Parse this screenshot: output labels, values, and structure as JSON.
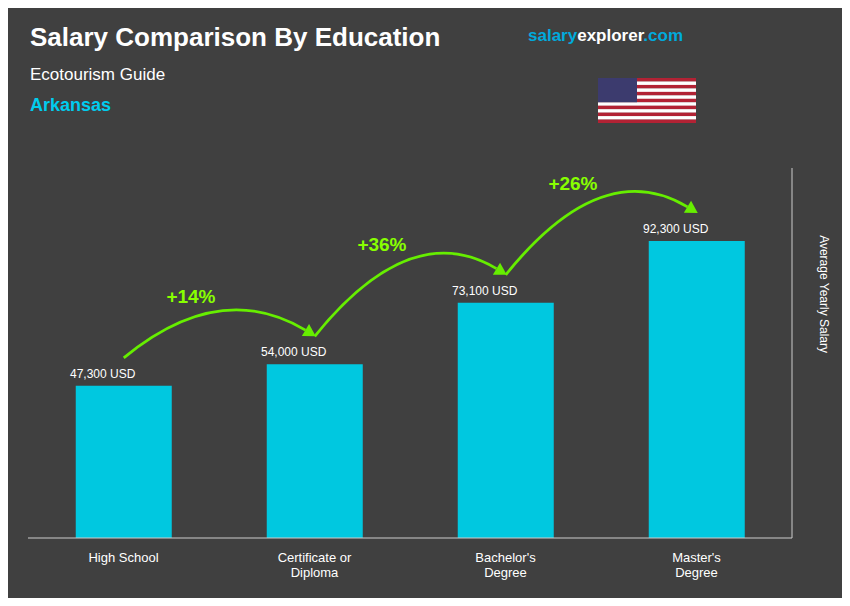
{
  "chart_data": {
    "type": "bar",
    "title": "Salary Comparison By Education",
    "subtitle": "Ecotourism Guide",
    "location": "Arkansas",
    "brand": [
      "salary",
      "explorer",
      ".com"
    ],
    "y_label": "Average Yearly Salary",
    "categories": [
      "High School",
      "Certificate or\nDiploma",
      "Bachelor's\nDegree",
      "Master's\nDegree"
    ],
    "values": [
      47300,
      54000,
      73100,
      92300
    ],
    "value_labels": [
      "47,300 USD",
      "54,000 USD",
      "73,100 USD",
      "92,300 USD"
    ],
    "data_labels": true,
    "change_labels": [
      "+14%",
      "+36%",
      "+26%"
    ],
    "color": "#00c8e0",
    "ylim": [
      0,
      115000
    ],
    "tick_labels": "x",
    "grid": false
  }
}
